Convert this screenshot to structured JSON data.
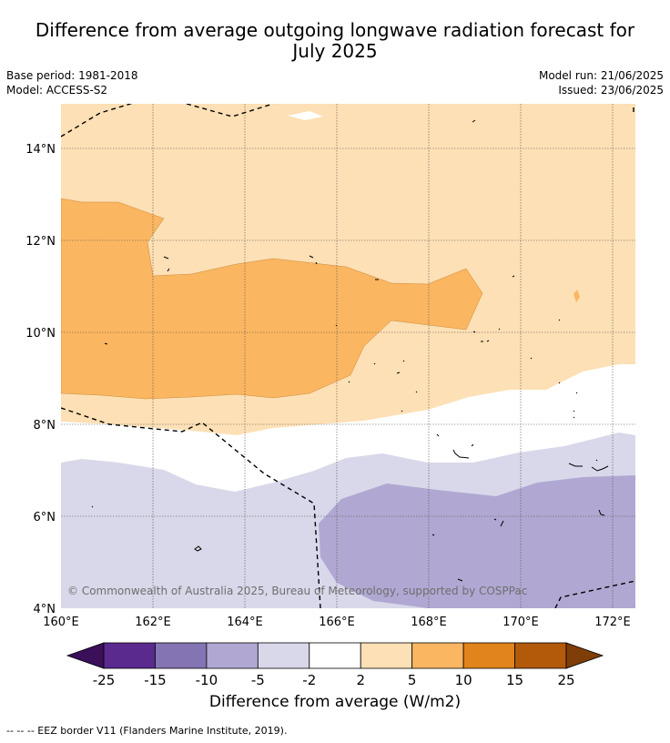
{
  "title": {
    "line1": "Difference from average outgoing longwave radiation forecast for",
    "line2": "July 2025"
  },
  "meta": {
    "base_period": "Base period: 1981-2018",
    "model": "Model: ACCESS-S2",
    "model_run": "Model run: 21/06/2025",
    "issued": "Issued: 23/06/2025"
  },
  "map": {
    "copyright": "© Commonwealth of Australia 2025, Bureau of Meteorology, supported by COSPPac",
    "lat_labels": [
      "14°N",
      "12°N",
      "10°N",
      "8°N",
      "6°N",
      "4°N"
    ],
    "lon_labels": [
      "160°E",
      "162°E",
      "164°E",
      "166°E",
      "168°E",
      "170°E",
      "172°E"
    ],
    "lon_range": [
      160,
      172.5
    ],
    "lat_range": [
      4,
      15
    ]
  },
  "colorbar": {
    "ticks": [
      "-25",
      "-15",
      "-10",
      "-5",
      "-2",
      "2",
      "5",
      "10",
      "15",
      "25"
    ],
    "colors": [
      "#5a2a8e",
      "#8574b3",
      "#b0a8d2",
      "#d8d8ea",
      "#ffffff",
      "#fde0b5",
      "#fbb661",
      "#e1841b",
      "#b25a0a"
    ],
    "under_color": "#3b0f5a",
    "over_color": "#7f3d07",
    "label": "Difference from average (W/m2)"
  },
  "footnote": "--  --  -- EEZ border V11 (Flanders Marine Institute, 2019)."
}
